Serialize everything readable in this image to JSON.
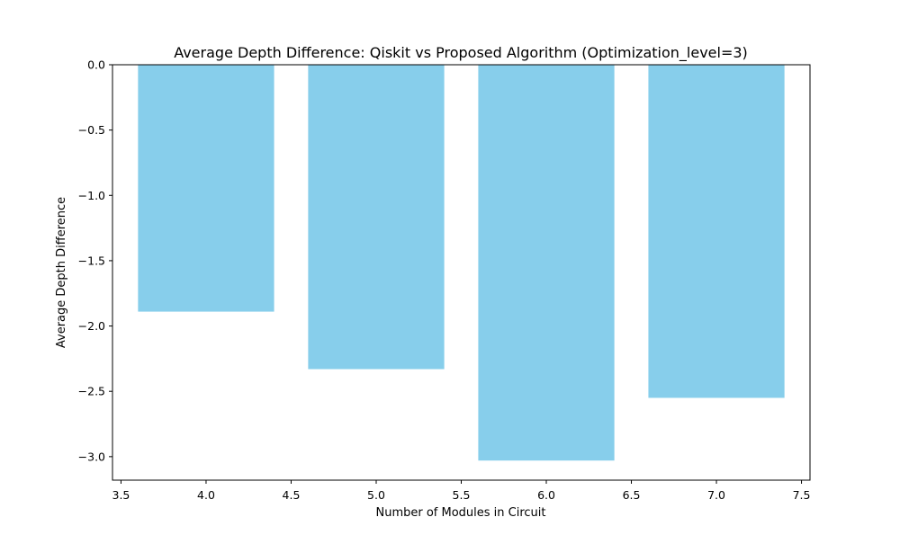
{
  "chart_data": {
    "type": "bar",
    "title": "Average Depth Difference: Qiskit vs Proposed Algorithm (Optimization_level=3)",
    "xlabel": "Number of Modules in Circuit",
    "ylabel": "Average Depth Difference",
    "x": [
      4,
      5,
      6,
      7
    ],
    "values": [
      -1.89,
      -2.33,
      -3.03,
      -2.55
    ],
    "bar_width": 0.8,
    "bar_color": "#87ceeb",
    "xlim": [
      3.45,
      7.55
    ],
    "ylim": [
      -3.18,
      0.0
    ],
    "xticks": [
      3.5,
      4.0,
      4.5,
      5.0,
      5.5,
      6.0,
      6.5,
      7.0,
      7.5
    ],
    "xtick_labels": [
      "3.5",
      "4.0",
      "4.5",
      "5.0",
      "5.5",
      "6.0",
      "6.5",
      "7.0",
      "7.5"
    ],
    "yticks": [
      0.0,
      -0.5,
      -1.0,
      -1.5,
      -2.0,
      -2.5,
      -3.0
    ],
    "ytick_labels": [
      "0.0",
      "−0.5",
      "−1.0",
      "−1.5",
      "−2.0",
      "−2.5",
      "−3.0"
    ],
    "grid": false,
    "legend": "none"
  }
}
